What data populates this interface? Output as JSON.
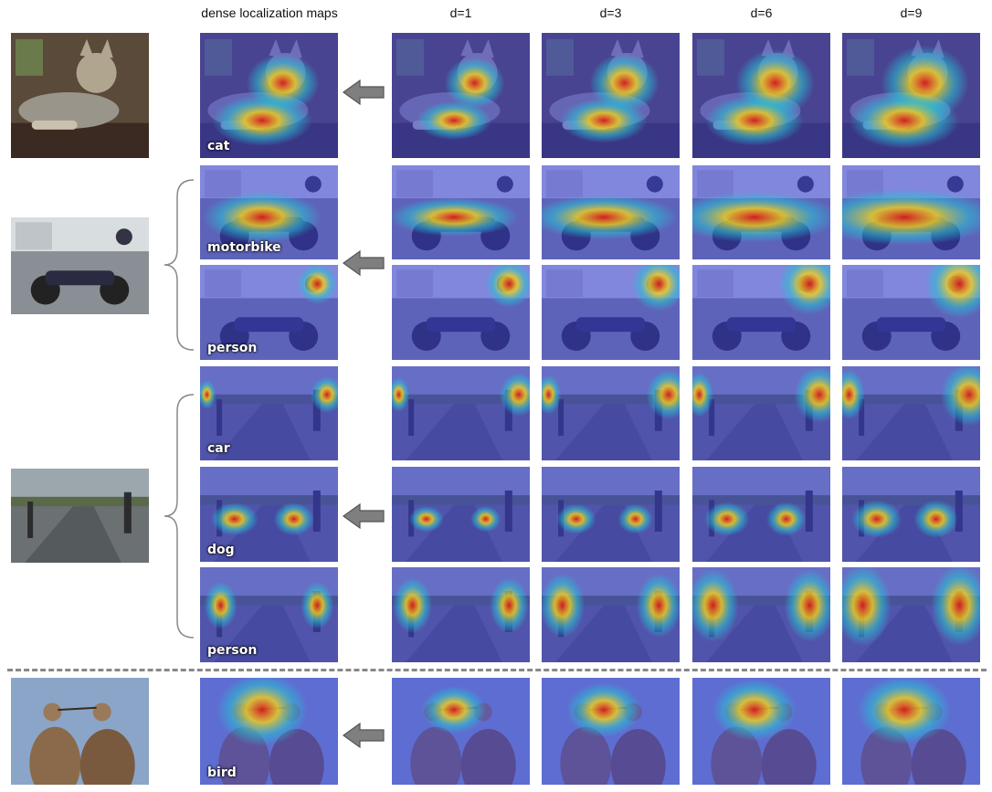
{
  "headers": {
    "dense": "dense localization maps",
    "d1": "d=1",
    "d3": "d=3",
    "d6": "d=6",
    "d9": "d=9"
  },
  "rows": [
    {
      "label": "cat",
      "image": "cat",
      "scene": "cat",
      "heat": "cat"
    },
    {
      "label": "motorbike",
      "image": "motorbike",
      "scene": "moto",
      "heat": "motorbike"
    },
    {
      "label": "person",
      "image": "motorbike",
      "scene": "moto",
      "heat": "rider"
    },
    {
      "label": "car",
      "image": "street",
      "scene": "street",
      "heat": "car"
    },
    {
      "label": "dog",
      "image": "street",
      "scene": "street",
      "heat": "dog"
    },
    {
      "label": "person",
      "image": "street",
      "scene": "street",
      "heat": "walkers"
    },
    {
      "label": "bird",
      "image": "bird",
      "scene": "bird",
      "heat": "bird"
    }
  ],
  "colors": {
    "overlay": "#3a3fd8",
    "hot": "#d81a1a",
    "warm": "#f3d21a",
    "cool": "#26c2d4"
  }
}
